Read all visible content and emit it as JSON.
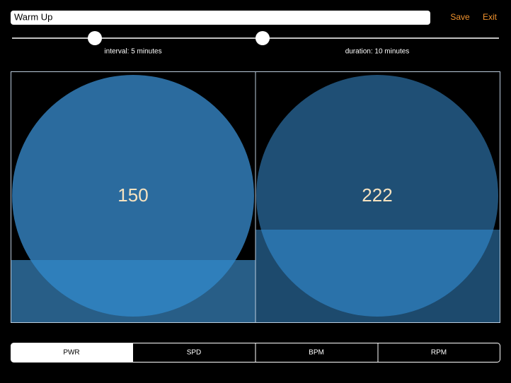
{
  "header": {
    "title": "Warm Up",
    "save": "Save",
    "exit": "Exit"
  },
  "sliders": [
    {
      "label": "interval: 5 minutes"
    },
    {
      "label": "duration: 10 minutes"
    }
  ],
  "panels": [
    {
      "value": "150"
    },
    {
      "value": "222"
    }
  ],
  "tabs": [
    "PWR",
    "SPD",
    "BPM",
    "RPM"
  ]
}
